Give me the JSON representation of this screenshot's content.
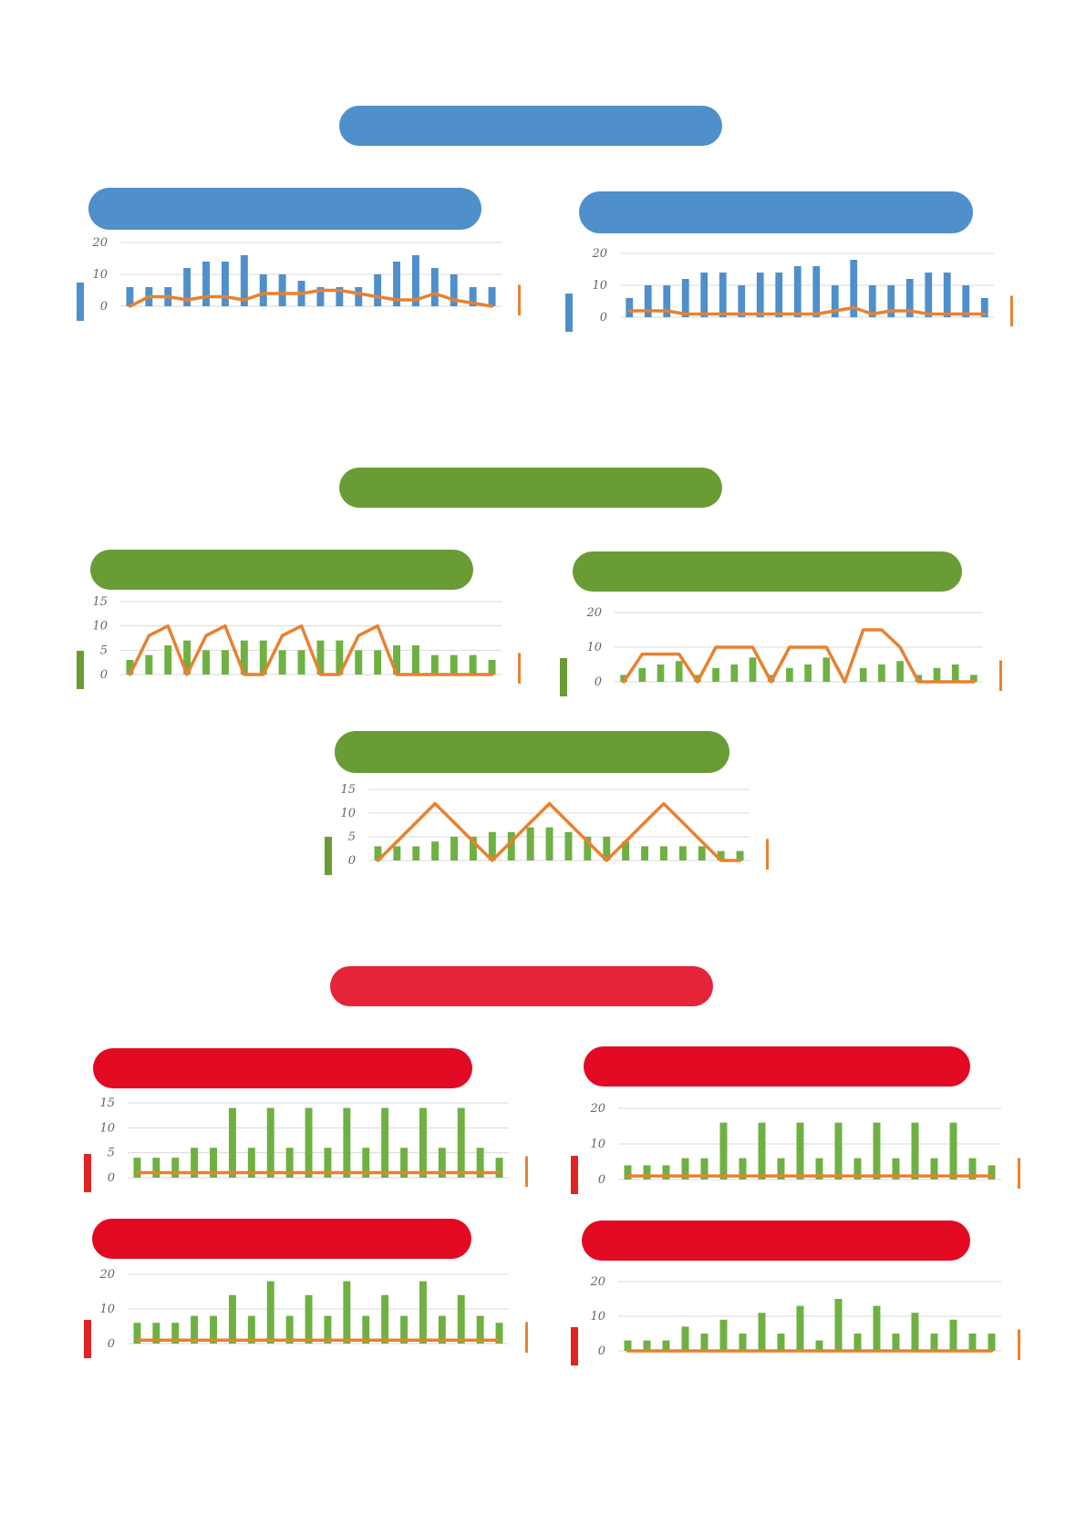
{
  "colors": {
    "blue": "#4f8fcb",
    "green": "#6a9c35",
    "red_section": "#e52339",
    "red": "#e20a22",
    "line": "#e88130",
    "bar_green": "#6fb043",
    "grid": "#d9d9d9",
    "marker_red": "#e02424"
  },
  "sections": [
    {
      "name": "blue-section",
      "color": "blue"
    },
    {
      "name": "green-section",
      "color": "green"
    },
    {
      "name": "red-section",
      "color": "red_section"
    }
  ],
  "chart_data": [
    {
      "type": "bar",
      "section": "blue",
      "ylim": [
        0,
        20
      ],
      "yticks": [
        0,
        10,
        20
      ],
      "grid": true,
      "series": [
        {
          "kind": "bar",
          "values": [
            6,
            6,
            6,
            12,
            14,
            14,
            16,
            10,
            10,
            8,
            6,
            6,
            6,
            10,
            14,
            16,
            12,
            10,
            6,
            6
          ]
        },
        {
          "kind": "line",
          "values": [
            0,
            3,
            3,
            2,
            3,
            3,
            2,
            4,
            4,
            4,
            5,
            5,
            4,
            3,
            2,
            2,
            4,
            2,
            1,
            0
          ]
        }
      ]
    },
    {
      "type": "bar",
      "section": "blue",
      "ylim": [
        0,
        20
      ],
      "yticks": [
        0,
        10,
        20
      ],
      "grid": true,
      "series": [
        {
          "kind": "bar",
          "values": [
            6,
            10,
            10,
            12,
            14,
            14,
            10,
            14,
            14,
            16,
            16,
            10,
            18,
            10,
            10,
            12,
            14,
            14,
            10,
            6
          ]
        },
        {
          "kind": "line",
          "values": [
            2,
            2,
            2,
            1,
            1,
            1,
            1,
            1,
            1,
            1,
            1,
            2,
            3,
            1,
            2,
            2,
            1,
            1,
            1,
            1
          ]
        }
      ]
    },
    {
      "type": "bar",
      "section": "green",
      "ylim": [
        0,
        15
      ],
      "yticks": [
        0,
        5,
        10,
        15
      ],
      "grid": true,
      "series": [
        {
          "kind": "bar",
          "values": [
            3,
            4,
            6,
            7,
            5,
            5,
            7,
            7,
            5,
            5,
            7,
            7,
            5,
            5,
            6,
            6,
            4,
            4,
            4,
            3
          ]
        },
        {
          "kind": "line",
          "values": [
            0,
            8,
            10,
            0,
            8,
            10,
            0,
            0,
            8,
            10,
            0,
            0,
            8,
            10,
            0,
            0,
            0,
            0,
            0,
            0
          ]
        }
      ]
    },
    {
      "type": "bar",
      "section": "green",
      "ylim": [
        0,
        20
      ],
      "yticks": [
        0,
        10,
        20
      ],
      "grid": true,
      "series": [
        {
          "kind": "bar",
          "values": [
            2,
            4,
            5,
            6,
            2,
            4,
            5,
            7,
            2,
            4,
            5,
            7,
            0,
            4,
            5,
            6,
            2,
            4,
            5,
            2
          ]
        },
        {
          "kind": "line",
          "values": [
            0,
            8,
            8,
            8,
            0,
            10,
            10,
            10,
            0,
            10,
            10,
            10,
            0,
            15,
            15,
            10,
            0,
            0,
            0,
            0
          ]
        }
      ]
    },
    {
      "type": "bar",
      "section": "green",
      "ylim": [
        0,
        15
      ],
      "yticks": [
        0,
        5,
        10,
        15
      ],
      "grid": true,
      "series": [
        {
          "kind": "bar",
          "values": [
            3,
            3,
            3,
            4,
            5,
            5,
            6,
            6,
            7,
            7,
            6,
            5,
            5,
            4,
            3,
            3,
            3,
            3,
            2,
            2
          ]
        },
        {
          "kind": "line",
          "values": [
            0,
            4,
            8,
            12,
            8,
            4,
            0,
            4,
            8,
            12,
            8,
            4,
            0,
            4,
            8,
            12,
            8,
            4,
            0,
            0
          ]
        }
      ]
    },
    {
      "type": "bar",
      "section": "red",
      "ylim": [
        0,
        15
      ],
      "yticks": [
        0,
        5,
        10,
        15
      ],
      "grid": true,
      "series": [
        {
          "kind": "bar",
          "values": [
            4,
            4,
            4,
            6,
            6,
            14,
            6,
            14,
            6,
            14,
            6,
            14,
            6,
            14,
            6,
            14,
            6,
            14,
            6,
            4
          ]
        },
        {
          "kind": "line",
          "values": [
            1,
            1,
            1,
            1,
            1,
            1,
            1,
            1,
            1,
            1,
            1,
            1,
            1,
            1,
            1,
            1,
            1,
            1,
            1,
            1
          ]
        }
      ]
    },
    {
      "type": "bar",
      "section": "red",
      "ylim": [
        0,
        20
      ],
      "yticks": [
        0,
        10,
        20
      ],
      "grid": true,
      "series": [
        {
          "kind": "bar",
          "values": [
            4,
            4,
            4,
            6,
            6,
            16,
            6,
            16,
            6,
            16,
            6,
            16,
            6,
            16,
            6,
            16,
            6,
            16,
            6,
            4
          ]
        },
        {
          "kind": "line",
          "values": [
            1,
            1,
            1,
            1,
            1,
            1,
            1,
            1,
            1,
            1,
            1,
            1,
            1,
            1,
            1,
            1,
            1,
            1,
            1,
            1
          ]
        }
      ]
    },
    {
      "type": "bar",
      "section": "red",
      "ylim": [
        0,
        20
      ],
      "yticks": [
        0,
        10,
        20
      ],
      "grid": true,
      "series": [
        {
          "kind": "bar",
          "values": [
            6,
            6,
            6,
            8,
            8,
            14,
            8,
            18,
            8,
            14,
            8,
            18,
            8,
            14,
            8,
            18,
            8,
            14,
            8,
            6
          ]
        },
        {
          "kind": "line",
          "values": [
            1,
            1,
            1,
            1,
            1,
            1,
            1,
            1,
            1,
            1,
            1,
            1,
            1,
            1,
            1,
            1,
            1,
            1,
            1,
            1
          ]
        }
      ]
    },
    {
      "type": "bar",
      "section": "red",
      "ylim": [
        0,
        20
      ],
      "yticks": [
        0,
        10,
        20
      ],
      "grid": true,
      "series": [
        {
          "kind": "bar",
          "values": [
            3,
            3,
            3,
            7,
            5,
            9,
            5,
            11,
            5,
            13,
            3,
            15,
            5,
            13,
            5,
            11,
            5,
            9,
            5,
            5
          ]
        },
        {
          "kind": "line",
          "values": [
            0,
            0,
            0,
            0,
            0,
            0,
            0,
            0,
            0,
            0,
            0,
            0,
            0,
            0,
            0,
            0,
            0,
            0,
            0,
            0
          ]
        }
      ]
    }
  ]
}
